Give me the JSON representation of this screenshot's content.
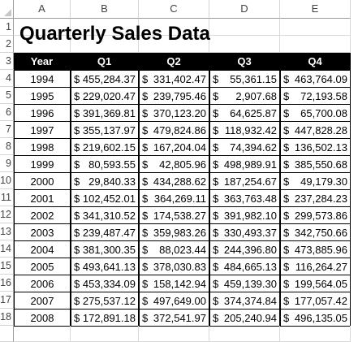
{
  "sheet": {
    "columns": [
      "A",
      "B",
      "C",
      "D",
      "E"
    ],
    "rows": [
      "1",
      "2",
      "3",
      "4",
      "5",
      "6",
      "7",
      "8",
      "9",
      "10",
      "11",
      "12",
      "13",
      "14",
      "15",
      "16",
      "17",
      "18"
    ],
    "title": "Quarterly Sales Data",
    "table_headers": [
      "Year",
      "Q1",
      "Q2",
      "Q3",
      "Q4"
    ],
    "table_rows": [
      {
        "year": "1994",
        "q1": "455,284.37",
        "q2": "331,402.47",
        "q3": " 55,361.15",
        "q4": "463,764.09"
      },
      {
        "year": "1995",
        "q1": "229,020.47",
        "q2": "239,795.46",
        "q3": "   2,907.68",
        "q4": " 72,193.58"
      },
      {
        "year": "1996",
        "q1": "391,369.81",
        "q2": "370,123.20",
        "q3": " 64,625.87",
        "q4": " 65,700.08"
      },
      {
        "year": "1997",
        "q1": "355,137.97",
        "q2": "479,824.86",
        "q3": "118,932.42",
        "q4": "447,828.28"
      },
      {
        "year": "1998",
        "q1": "219,602.15",
        "q2": "167,204.04",
        "q3": " 74,394.62",
        "q4": "136,502.13"
      },
      {
        "year": "1999",
        "q1": " 80,593.55",
        "q2": " 42,805.96",
        "q3": "498,989.91",
        "q4": "385,550.68"
      },
      {
        "year": "2000",
        "q1": " 29,840.33",
        "q2": "434,288.62",
        "q3": "187,254.67",
        "q4": " 49,179.30"
      },
      {
        "year": "2001",
        "q1": "102,452.01",
        "q2": "364,269.11",
        "q3": "363,763.48",
        "q4": "237,284.23"
      },
      {
        "year": "2002",
        "q1": "341,310.52",
        "q2": "174,538.27",
        "q3": "391,982.10",
        "q4": "299,573.86"
      },
      {
        "year": "2003",
        "q1": "239,487.47",
        "q2": "359,983.26",
        "q3": "330,493.37",
        "q4": "342,750.66"
      },
      {
        "year": "2004",
        "q1": "381,300.35",
        "q2": " 88,023.44",
        "q3": "244,396.80",
        "q4": "473,885.96"
      },
      {
        "year": "2005",
        "q1": "493,641.13",
        "q2": "378,030.83",
        "q3": "484,665.13",
        "q4": "116,264.27"
      },
      {
        "year": "2006",
        "q1": "453,334.09",
        "q2": "158,142.94",
        "q3": "459,139.30",
        "q4": "199,564.05"
      },
      {
        "year": "2007",
        "q1": "275,537.12",
        "q2": "497,649.00",
        "q3": "374,374.84",
        "q4": "177,057.42"
      },
      {
        "year": "2008",
        "q1": "172,891.18",
        "q2": "372,541.97",
        "q3": "205,240.94",
        "q4": "496,135.05"
      }
    ],
    "currency_symbol": "$",
    "header_bg": "#000000",
    "header_fg": "#ffffff"
  }
}
